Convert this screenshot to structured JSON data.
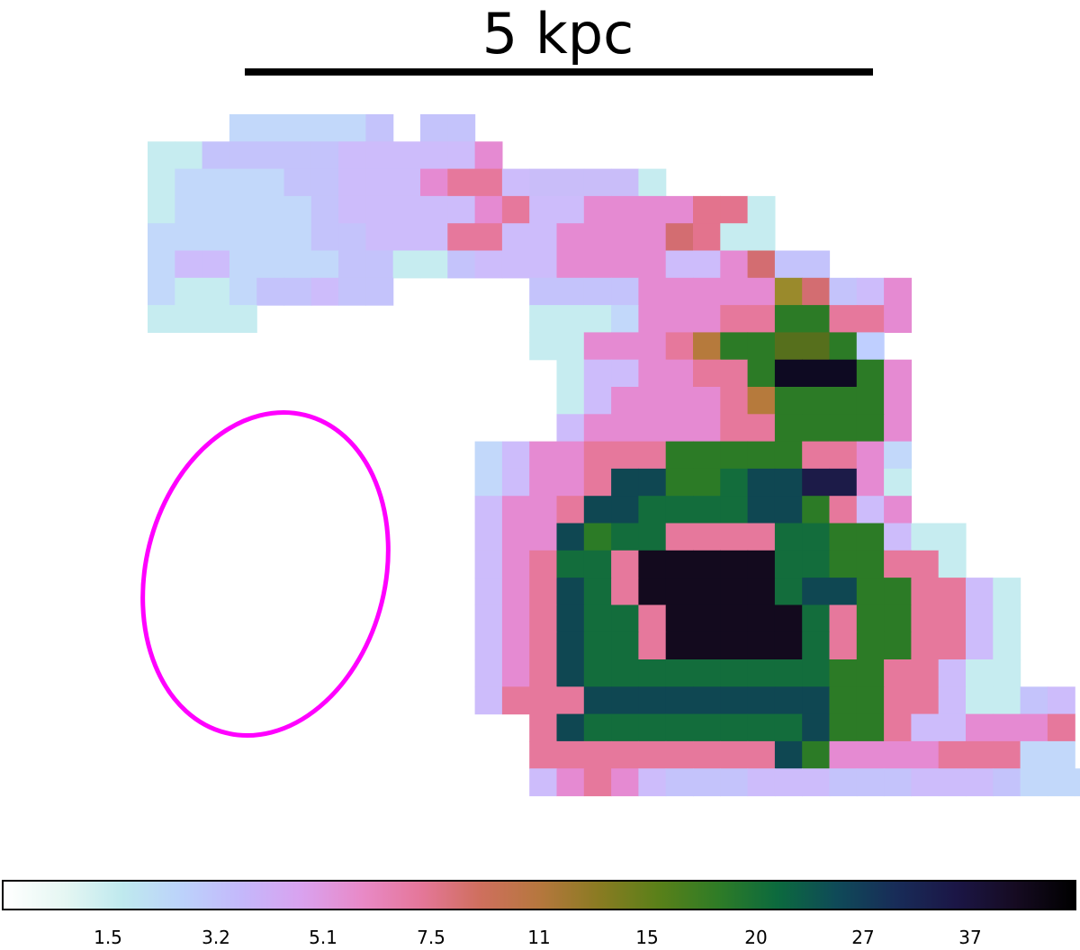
{
  "scale_bar": {
    "label": "5 kpc"
  },
  "colorbar": {
    "tick_labels": [
      "1.5",
      "3.2",
      "5.1",
      "7.5",
      "11",
      "15",
      "20",
      "27",
      "37"
    ],
    "stops": [
      "#ffffff",
      "#e6f7f3",
      "#bfe9ee",
      "#bcd2fb",
      "#c4b8fb",
      "#d9a2ef",
      "#e88ac8",
      "#e5779a",
      "#cf6f5e",
      "#b6773e",
      "#8a7b22",
      "#5a8019",
      "#2f7c26",
      "#0c6a3e",
      "#0f4a58",
      "#182c58",
      "#1b1646",
      "#160b22",
      "#000000"
    ]
  },
  "ellipse_color": "#ff00ff",
  "map": {
    "x0": 164,
    "y0": 127,
    "cell": 30.3,
    "rows": [
      "...KKKKKM.MM.................",
      "LLMMMMMNNNNNP................",
      "LKKKKMMNNNPGGNIIIIL..........",
      "LKKKKKMNNNNNPGNNPPPPSSL......",
      "KKKKKKMMNNNGGNNPPPPRSLL......",
      "KNNKKKKMMLLMNNNPPPPNNPRMM....",
      "KLLKMMNMM.....MMMMPPPPPQRMNP.",
      "LLLL..........LLLKPPPGGFFGGP.",
      "..............LLPPPGJFFAAFT..",
      "...............LNNPPGGFBBBFP.",
      "...............LNPPPPGJFFFFP.",
      "...............NPPPPPGGFFFFP.",
      "............KNPPGGGFFFFFGGPK.",
      "............KNPPGDDFFEDDCCPL.",
      "............NPPGDDEEEEDDFGNP..",
      "............NPPDFEEGGGGEEFFNLL.",
      "............NPGEEGHHHHHEEFFGGL.",
      "............NPGDEGHHHHHEDDFFGGNL.",
      "............NPGDEEGHHHHHEGFFGGNL.",
      "............NPGDEEGHHHHHEGFFGGNL.",
      "............NPGDEEEEEEEEEFFGGNLL.",
      "............NGGGDDDDDDDDDFFGGNLLMN",
      "..............GDEEEEEEEEDFFGNNPPPG",
      "..............GGGGGGGGGDFPPPPGGGKK",
      "..............NPGPNMMMNNNMMMNNNMKKK"
    ]
  }
}
